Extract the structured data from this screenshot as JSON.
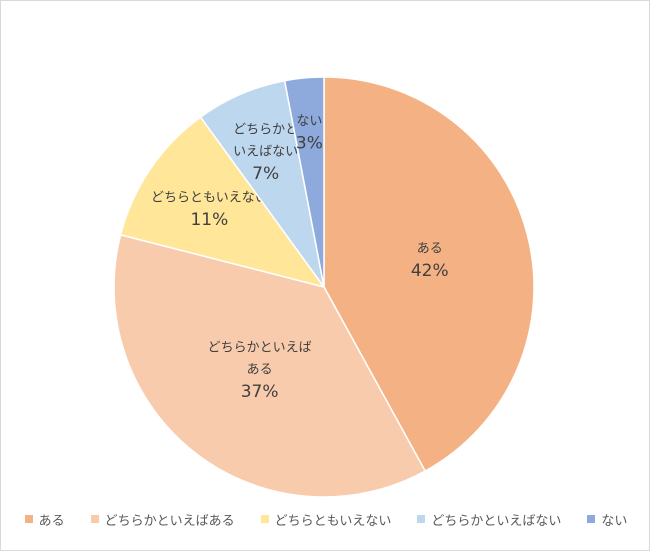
{
  "chart_data": {
    "type": "pie",
    "title": "",
    "categories": [
      "ある",
      "どちらかといえばある",
      "どちらともいえない",
      "どちらかといえばない",
      "ない"
    ],
    "values": [
      42,
      37,
      11,
      7,
      3
    ],
    "value_labels": [
      "42%",
      "37%",
      "11%",
      "7%",
      "3%"
    ],
    "slice_labels": [
      [
        "ある"
      ],
      [
        "どちらかといえば",
        "ある"
      ],
      [
        "どちらともいえない"
      ],
      [
        "どちらかと",
        "いえばない"
      ],
      [
        "ない"
      ]
    ],
    "colors": [
      "#F4B183",
      "#F8CBAD",
      "#FFE699",
      "#BDD7EE",
      "#8EA9DB"
    ],
    "legend_position": "bottom",
    "start_angle": "12 o'clock",
    "direction": "clockwise"
  }
}
